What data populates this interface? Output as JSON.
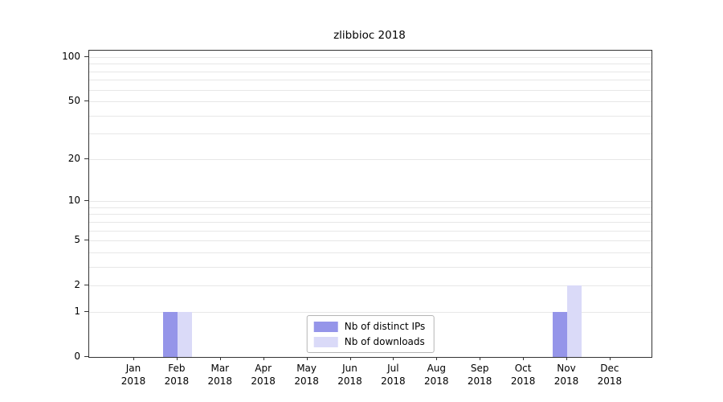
{
  "chart_data": {
    "type": "bar",
    "title": "zlibbioc 2018",
    "year": "2018",
    "months": [
      "Jan",
      "Feb",
      "Mar",
      "Apr",
      "May",
      "Jun",
      "Jul",
      "Aug",
      "Sep",
      "Oct",
      "Nov",
      "Dec"
    ],
    "series": [
      {
        "name": "Nb of distinct IPs",
        "color": "#9595e9",
        "values": [
          0,
          1,
          0,
          0,
          0,
          0,
          0,
          0,
          0,
          0,
          1,
          0
        ]
      },
      {
        "name": "Nb of downloads",
        "color": "#dadaf8",
        "values": [
          0,
          1,
          0,
          0,
          0,
          0,
          0,
          0,
          0,
          0,
          2,
          0
        ]
      }
    ],
    "yticks": [
      0,
      1,
      2,
      5,
      10,
      20,
      50,
      100
    ],
    "gridline_values": [
      1,
      2,
      3,
      4,
      5,
      6,
      7,
      8,
      9,
      10,
      20,
      30,
      40,
      50,
      60,
      70,
      80,
      90,
      100
    ],
    "scale": "log1p",
    "ylim": [
      0,
      100
    ],
    "grid": "horizontal-minor",
    "legend_position": "bottom-center-inside",
    "axis_color": "#333333",
    "gridline_color": "#e7e7e7"
  }
}
